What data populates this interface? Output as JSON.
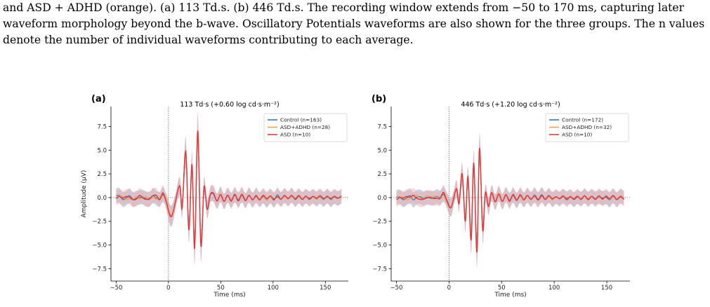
{
  "caption": {
    "line1": "and ASD + ADHD (orange). (a) 113 Td.s. (b) 446 Td.s. The recording window extends from −50 to 170 ms, capturing later",
    "line2": "waveform morphology beyond the b-wave. Oscillatory Potentials waveforms are also shown for the three groups. The n values",
    "line3": "denote the number of individual waveforms contributing to each average."
  },
  "colors": {
    "control": "#3b75af",
    "asd_adhd": "#f0a54a",
    "asd": "#e03a3a",
    "band_control": "#9aaec4",
    "band_asd": "#f2a9b0"
  },
  "chart_data": [
    {
      "type": "line",
      "panel_label": "(a)",
      "title": "113 Td·s (+0.60 log cd·s·m⁻²)",
      "xlabel": "Time (ms)",
      "ylabel": "Amplitude (µV)",
      "xlim": [
        -55,
        172
      ],
      "ylim": [
        -8.8,
        9.6
      ],
      "xticks": [
        -50,
        0,
        50,
        100,
        150
      ],
      "yticks": [
        -7.5,
        -5.0,
        -2.5,
        0.0,
        2.5,
        5.0,
        7.5
      ],
      "xtick_labels": [
        "−50",
        "0",
        "50",
        "100",
        "150"
      ],
      "ytick_labels": [
        "−7.5",
        "−5.0",
        "−2.5",
        "0.0",
        "2.5",
        "5.0",
        "7.5"
      ],
      "legend_position": "top-right",
      "series": [
        {
          "name": "Control (n=163)",
          "key": "control",
          "amp": 1.0
        },
        {
          "name": "ASD+ADHD (n=28)",
          "key": "asd_adhd",
          "amp": 0.97
        },
        {
          "name": "ASD (n=10)",
          "key": "asd",
          "amp": 1.04
        }
      ],
      "peaks": {
        "x": [
          10.5,
          16.5,
          22.5,
          28.0,
          34.0,
          40.0
        ],
        "y": [
          1.2,
          4.7,
          3.4,
          6.8,
          1.1,
          0.3
        ]
      },
      "troughs": {
        "x": [
          3.0,
          13.0,
          19.5,
          25.0,
          31.0,
          37.0
        ],
        "y": [
          -1.9,
          -1.1,
          -3.3,
          -5.2,
          -4.9,
          -1.2
        ]
      }
    },
    {
      "type": "line",
      "panel_label": "(b)",
      "title": "446 Td·s (+1.20 log cd·s·m⁻²)",
      "xlabel": "Time (ms)",
      "ylabel": "",
      "xlim": [
        -55,
        172
      ],
      "ylim": [
        -8.8,
        9.6
      ],
      "xticks": [
        -50,
        0,
        50,
        100,
        150
      ],
      "yticks": [
        -7.5,
        -5.0,
        -2.5,
        0.0,
        2.5,
        5.0,
        7.5
      ],
      "xtick_labels": [
        "−50",
        "0",
        "50",
        "100",
        "150"
      ],
      "ytick_labels": [
        "−7.5",
        "−5.0",
        "−2.5",
        "0.0",
        "2.5",
        "5.0",
        "7.5"
      ],
      "legend_position": "top-right",
      "series": [
        {
          "name": "Control (n=172)",
          "key": "control",
          "amp": 1.0
        },
        {
          "name": "ASD+ADHD (n=32)",
          "key": "asd_adhd",
          "amp": 0.96
        },
        {
          "name": "ASD (n=10)",
          "key": "asd",
          "amp": 1.05
        }
      ],
      "peaks": {
        "x": [
          7.0,
          12.5,
          18.0,
          23.5,
          29.0,
          34.5
        ],
        "y": [
          0.9,
          2.4,
          2.1,
          3.5,
          5.0,
          0.5
        ]
      },
      "troughs": {
        "x": [
          2.0,
          9.5,
          15.5,
          21.0,
          26.5,
          32.0,
          37.5
        ],
        "y": [
          -1.0,
          -0.6,
          -2.4,
          -4.3,
          -5.5,
          -3.3,
          -0.9
        ]
      }
    }
  ]
}
